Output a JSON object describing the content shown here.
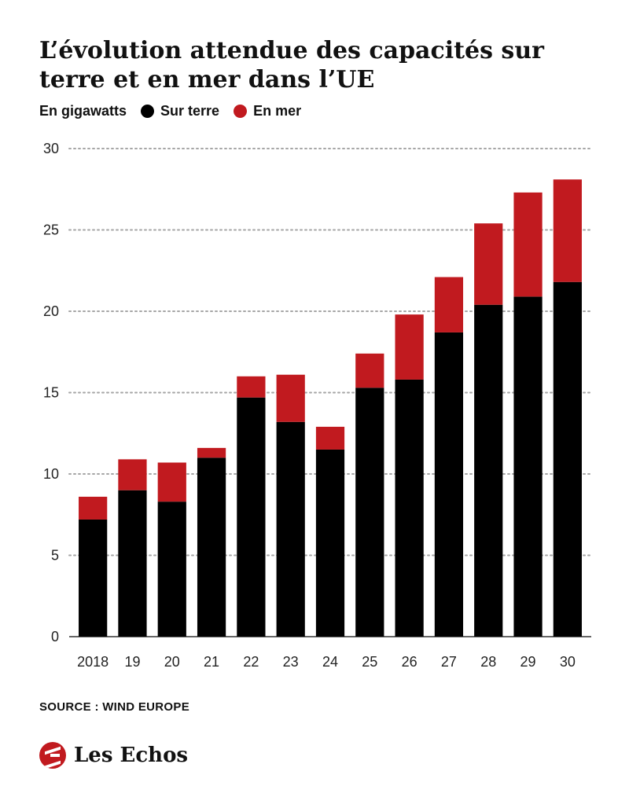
{
  "chart_data": {
    "type": "bar",
    "stacked": true,
    "title": "L’évolution attendue des capacités sur terre et en mer dans l’UE",
    "unit_label": "En gigawatts",
    "categories": [
      "2018",
      "19",
      "20",
      "21",
      "22",
      "23",
      "24",
      "25",
      "26",
      "27",
      "28",
      "29",
      "30"
    ],
    "series": [
      {
        "name": "Sur terre",
        "color": "#000000",
        "values": [
          7.2,
          9.0,
          8.3,
          11.0,
          14.7,
          13.2,
          11.5,
          15.3,
          15.8,
          18.7,
          20.4,
          20.9,
          21.8
        ]
      },
      {
        "name": "En mer",
        "color": "#c11a1f",
        "values": [
          1.4,
          1.9,
          2.4,
          0.6,
          1.3,
          2.9,
          1.4,
          2.1,
          4.0,
          3.4,
          5.0,
          6.4,
          6.3
        ]
      }
    ],
    "yticks": [
      0,
      5,
      10,
      15,
      20,
      25,
      30
    ],
    "ylim": [
      0,
      30
    ],
    "grid": "dotted horizontal",
    "legend": "top-left"
  },
  "source": "SOURCE : WIND EUROPE",
  "brand": {
    "name": "Les Echos",
    "logo_color": "#c11a1f"
  }
}
